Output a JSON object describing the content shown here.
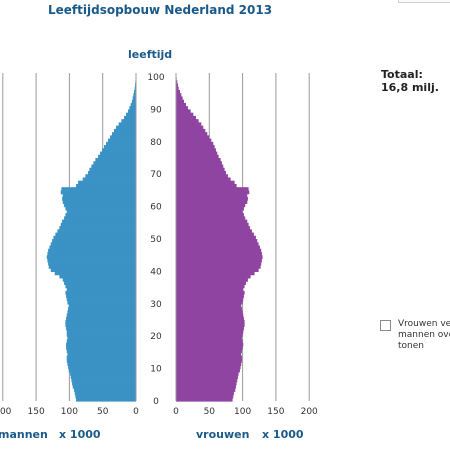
{
  "chart_data": {
    "type": "bar",
    "title": "Leeftijdsopbouw Nederland 2013",
    "age_axis_label": "leeftijd",
    "age_ticks": [
      0,
      10,
      20,
      30,
      40,
      50,
      60,
      70,
      80,
      90,
      100
    ],
    "x_ticks": [
      0,
      50,
      100,
      150,
      200
    ],
    "x_range": [
      0,
      200
    ],
    "left_label": "mannen",
    "right_label": "vrouwen",
    "unit_label": "x 1000",
    "total_label": "Totaal:",
    "total_value": "16,8 milj.",
    "colors": {
      "mannen": "#3b92c4",
      "vrouwen": "#8e44a0",
      "grid": "#9a9a9a"
    },
    "ages": [
      0,
      1,
      2,
      3,
      4,
      5,
      6,
      7,
      8,
      9,
      10,
      11,
      12,
      13,
      14,
      15,
      16,
      17,
      18,
      19,
      20,
      21,
      22,
      23,
      24,
      25,
      26,
      27,
      28,
      29,
      30,
      31,
      32,
      33,
      34,
      35,
      36,
      37,
      38,
      39,
      40,
      41,
      42,
      43,
      44,
      45,
      46,
      47,
      48,
      49,
      50,
      51,
      52,
      53,
      54,
      55,
      56,
      57,
      58,
      59,
      60,
      61,
      62,
      63,
      64,
      65,
      66,
      67,
      68,
      69,
      70,
      71,
      72,
      73,
      74,
      75,
      76,
      77,
      78,
      79,
      80,
      81,
      82,
      83,
      84,
      85,
      86,
      87,
      88,
      89,
      90,
      91,
      92,
      93,
      94,
      95,
      96,
      97,
      98,
      99,
      100
    ],
    "series": [
      {
        "name": "mannen",
        "values": [
          90,
          91,
          92,
          93,
          95,
          96,
          97,
          98,
          99,
          101,
          102,
          103,
          104,
          104,
          103,
          104,
          105,
          105,
          104,
          103,
          104,
          104,
          105,
          106,
          106,
          105,
          104,
          103,
          102,
          101,
          103,
          104,
          105,
          106,
          104,
          106,
          108,
          110,
          115,
          122,
          128,
          131,
          132,
          133,
          134,
          133,
          132,
          130,
          128,
          126,
          124,
          121,
          118,
          115,
          113,
          111,
          108,
          106,
          104,
          106,
          108,
          110,
          111,
          110,
          113,
          112,
          90,
          87,
          80,
          76,
          72,
          70,
          67,
          64,
          61,
          57,
          54,
          51,
          48,
          45,
          42,
          39,
          36,
          33,
          30,
          26,
          22,
          18,
          15,
          12,
          10,
          8,
          6,
          5,
          4,
          3,
          2,
          1.5,
          1,
          0.5,
          0.3
        ]
      },
      {
        "name": "vrouwen",
        "values": [
          85,
          86,
          87,
          89,
          90,
          91,
          92,
          93,
          94,
          96,
          97,
          98,
          99,
          99,
          98,
          99,
          100,
          101,
          100,
          99,
          100,
          101,
          102,
          103,
          103,
          102,
          101,
          100,
          99,
          98,
          100,
          101,
          102,
          103,
          101,
          103,
          105,
          108,
          112,
          118,
          124,
          127,
          128,
          129,
          130,
          129,
          128,
          126,
          124,
          122,
          120,
          117,
          114,
          111,
          109,
          107,
          104,
          102,
          100,
          102,
          104,
          107,
          108,
          107,
          110,
          109,
          91,
          88,
          82,
          78,
          75,
          73,
          71,
          69,
          67,
          64,
          62,
          60,
          58,
          56,
          53,
          50,
          47,
          44,
          41,
          38,
          34,
          30,
          26,
          22,
          18,
          15,
          12,
          10,
          8,
          6,
          4,
          3,
          2,
          1,
          0.5
        ]
      }
    ]
  },
  "legend_checkbox": {
    "label": "Vrouwen ver\nmannen ove\ntonen",
    "checked": false
  }
}
